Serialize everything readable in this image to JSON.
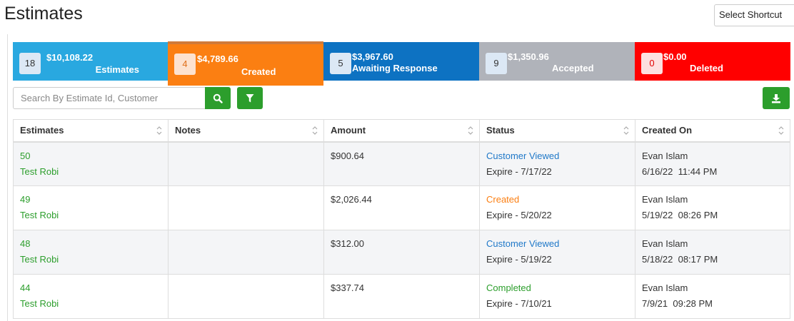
{
  "header": {
    "title": "Estimates",
    "shortcut_label": "Select Shortcut"
  },
  "stats": [
    {
      "count": "18",
      "amount": "$10,108.22",
      "label": "Estimates",
      "color": "#29a8e0"
    },
    {
      "count": "4",
      "amount": "$4,789.66",
      "label": "Created",
      "color": "#fb7f12"
    },
    {
      "count": "5",
      "amount": "$3,967.60",
      "label": "Awaiting Response",
      "color": "#0d72c2"
    },
    {
      "count": "9",
      "amount": "$1,350.96",
      "label": "Accepted",
      "color": "#b0b3ba"
    },
    {
      "count": "0",
      "amount": "$0.00",
      "label": "Deleted",
      "color": "#ff0000"
    }
  ],
  "search": {
    "placeholder": "Search By Estimate Id, Customer",
    "value": ""
  },
  "icons": {
    "search": "search-icon",
    "filter": "filter-icon",
    "download": "download-icon",
    "sort": "sort-icon"
  },
  "table": {
    "columns": [
      "Estimates",
      "Notes",
      "Amount",
      "Status",
      "Created On"
    ],
    "rows": [
      {
        "id": "50",
        "customer": "Test Robi",
        "notes": "",
        "amount": "$900.64",
        "status": "Customer Viewed",
        "status_type": "viewed",
        "expire": "Expire - 7/17/22",
        "created_by": "Evan Islam",
        "created_on": "6/16/22  11:44 PM"
      },
      {
        "id": "49",
        "customer": "Test Robi",
        "notes": "",
        "amount": "$2,026.44",
        "status": "Created",
        "status_type": "created",
        "expire": "Expire - 5/20/22",
        "created_by": "Evan Islam",
        "created_on": "5/19/22  08:26 PM"
      },
      {
        "id": "48",
        "customer": "Test Robi",
        "notes": "",
        "amount": "$312.00",
        "status": "Customer Viewed",
        "status_type": "viewed",
        "expire": "Expire - 5/19/22",
        "created_by": "Evan Islam",
        "created_on": "5/18/22  08:17 PM"
      },
      {
        "id": "44",
        "customer": "Test Robi",
        "notes": "",
        "amount": "$337.74",
        "status": "Completed",
        "status_type": "completed",
        "expire": "Expire - 7/10/21",
        "created_by": "Evan Islam",
        "created_on": "7/9/21  09:28 PM"
      }
    ]
  }
}
